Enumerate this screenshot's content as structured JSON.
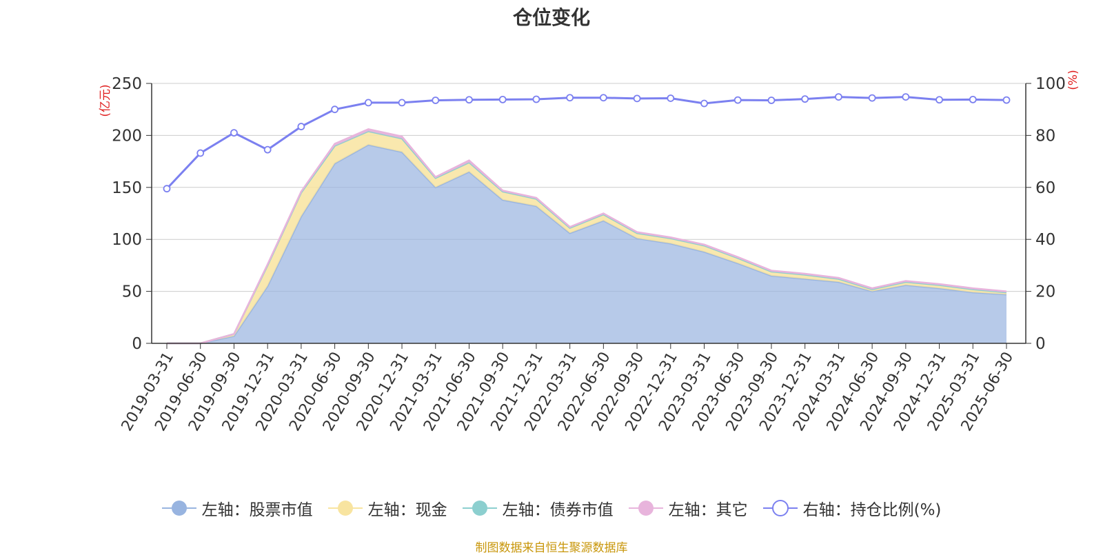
{
  "chart_data": {
    "type": "area",
    "title": "仓位变化",
    "left_axis_unit": "(亿元)",
    "right_axis_unit": "(%)",
    "left_ylim": [
      0,
      250
    ],
    "left_ticks": [
      "0",
      "50",
      "100",
      "150",
      "200",
      "250"
    ],
    "right_ylim": [
      0,
      100
    ],
    "right_ticks": [
      "0",
      "20",
      "40",
      "60",
      "80",
      "100"
    ],
    "grid": true,
    "legend_position": "bottom",
    "categories": [
      "2019-03-31",
      "2019-06-30",
      "2019-09-30",
      "2019-12-31",
      "2020-03-31",
      "2020-06-30",
      "2020-09-30",
      "2020-12-31",
      "2021-03-31",
      "2021-06-30",
      "2021-09-30",
      "2021-12-31",
      "2022-03-31",
      "2022-06-30",
      "2022-09-30",
      "2022-12-31",
      "2023-03-31",
      "2023-06-30",
      "2023-09-30",
      "2023-12-31",
      "2024-03-31",
      "2024-06-30",
      "2024-09-30",
      "2024-12-31",
      "2025-03-31",
      "2025-06-30"
    ],
    "series": [
      {
        "name": "左轴：股票市值",
        "axis": "left",
        "color": "#98b4e0",
        "values": [
          0,
          0,
          7,
          55,
          122,
          173,
          191,
          184,
          150,
          165,
          138,
          132,
          106,
          118,
          101,
          96,
          88,
          77,
          65,
          62,
          59,
          50,
          56,
          53,
          49,
          47
        ]
      },
      {
        "name": "左轴：现金",
        "axis": "left",
        "color": "#f8e4a0",
        "values": [
          0,
          0,
          2,
          20,
          23,
          17,
          13,
          13,
          9,
          9,
          8,
          7,
          5,
          6,
          5,
          5,
          6,
          5,
          4,
          4,
          3,
          2,
          3,
          3,
          3,
          2
        ]
      },
      {
        "name": "左轴：债券市值",
        "axis": "left",
        "color": "#8ccfcf",
        "values": [
          0,
          0,
          0,
          0,
          0,
          0,
          0,
          0,
          0,
          0,
          0,
          0,
          0,
          0,
          0,
          0,
          0,
          0,
          0,
          0,
          0,
          0,
          0,
          0,
          0,
          0
        ]
      },
      {
        "name": "左轴：其它",
        "axis": "left",
        "color": "#e8b4dc",
        "values": [
          0,
          0,
          0,
          1,
          1,
          2,
          2,
          2,
          1,
          2,
          1,
          1,
          1,
          1,
          1,
          1,
          1,
          1,
          1,
          1,
          1,
          1,
          1,
          1,
          1,
          1
        ]
      },
      {
        "name": "右轴：持仓比例(%)",
        "axis": "right",
        "color": "#7b80f0",
        "values": [
          59.5,
          73.2,
          81,
          74.5,
          83.4,
          90,
          92.6,
          92.6,
          93.5,
          93.7,
          93.8,
          93.9,
          94.5,
          94.5,
          94.2,
          94.3,
          92.3,
          93.6,
          93.5,
          94,
          94.8,
          94.4,
          94.8,
          93.7,
          93.8,
          93.6
        ]
      }
    ]
  },
  "source_note": "制图数据来自恒生聚源数据库"
}
